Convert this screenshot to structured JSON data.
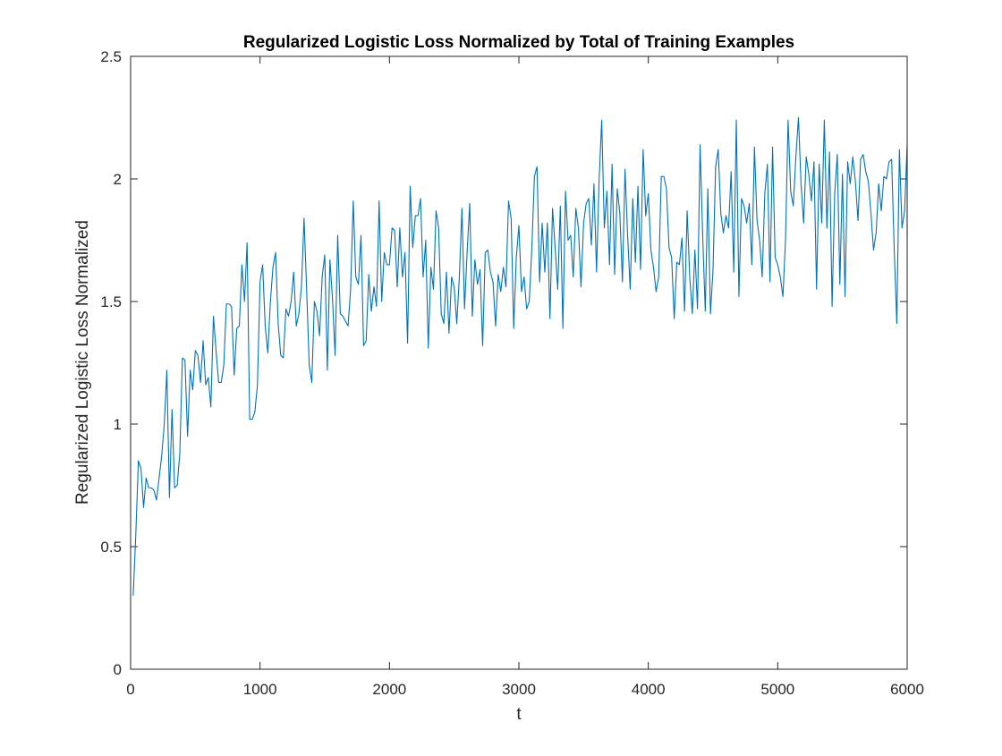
{
  "chart_data": {
    "type": "line",
    "title": "Regularized Logistic Loss Normalized by Total of Training Examples",
    "xlabel": "t",
    "ylabel": "Regularized Logistic Loss Normalized",
    "xlim": [
      0,
      6000
    ],
    "ylim": [
      0,
      2.5
    ],
    "xticks": [
      0,
      1000,
      2000,
      3000,
      4000,
      5000,
      6000
    ],
    "yticks": [
      0,
      0.5,
      1,
      1.5,
      2,
      2.5
    ],
    "xtick_labels": [
      "0",
      "1000",
      "2000",
      "3000",
      "4000",
      "5000",
      "6000"
    ],
    "ytick_labels": [
      "0",
      "0.5",
      "1",
      "1.5",
      "2",
      "2.5"
    ],
    "grid": false,
    "legend": "none",
    "series_color": "#0072BD",
    "x_start": 20,
    "x_step": 20,
    "y": [
      0.3,
      0.55,
      0.85,
      0.82,
      0.66,
      0.78,
      0.74,
      0.74,
      0.73,
      0.69,
      0.78,
      0.87,
      1.0,
      1.22,
      0.7,
      1.06,
      0.74,
      0.75,
      0.88,
      1.27,
      1.26,
      0.95,
      1.22,
      1.14,
      1.3,
      1.28,
      1.17,
      1.34,
      1.16,
      1.19,
      1.07,
      1.44,
      1.3,
      1.17,
      1.17,
      1.24,
      1.49,
      1.49,
      1.48,
      1.2,
      1.39,
      1.4,
      1.65,
      1.5,
      1.74,
      1.02,
      1.02,
      1.05,
      1.16,
      1.58,
      1.65,
      1.4,
      1.29,
      1.5,
      1.64,
      1.7,
      1.41,
      1.28,
      1.27,
      1.47,
      1.44,
      1.5,
      1.62,
      1.4,
      1.45,
      1.56,
      1.84,
      1.55,
      1.24,
      1.17,
      1.5,
      1.46,
      1.36,
      1.6,
      1.69,
      1.22,
      1.67,
      1.51,
      1.28,
      1.77,
      1.45,
      1.44,
      1.42,
      1.4,
      1.55,
      1.91,
      1.6,
      1.57,
      1.77,
      1.32,
      1.34,
      1.61,
      1.46,
      1.56,
      1.48,
      1.91,
      1.5,
      1.7,
      1.65,
      1.65,
      1.8,
      1.79,
      1.56,
      1.8,
      1.6,
      1.7,
      1.33,
      1.97,
      1.72,
      1.85,
      1.85,
      1.92,
      1.6,
      1.75,
      1.31,
      1.64,
      1.55,
      1.87,
      1.8,
      1.45,
      1.41,
      1.62,
      1.37,
      1.6,
      1.56,
      1.41,
      1.6,
      1.88,
      1.47,
      1.7,
      1.9,
      1.44,
      1.67,
      1.57,
      1.63,
      1.32,
      1.7,
      1.71,
      1.62,
      1.58,
      1.4,
      1.61,
      1.54,
      1.64,
      1.56,
      1.91,
      1.84,
      1.39,
      1.68,
      1.81,
      1.54,
      1.6,
      1.47,
      1.5,
      1.72,
      2.01,
      2.05,
      1.58,
      1.82,
      1.62,
      1.82,
      1.43,
      1.88,
      1.72,
      1.55,
      1.89,
      1.39,
      1.95,
      1.75,
      1.77,
      1.6,
      1.88,
      1.8,
      1.56,
      1.82,
      1.9,
      1.92,
      1.73,
      1.98,
      1.62,
      2.0,
      2.24,
      1.8,
      1.95,
      1.65,
      2.06,
      1.61,
      1.96,
      1.86,
      1.58,
      2.04,
      1.77,
      1.55,
      1.92,
      1.66,
      1.97,
      1.63,
      2.12,
      1.85,
      1.94,
      1.71,
      1.64,
      1.54,
      1.6,
      2.01,
      2.01,
      1.96,
      1.72,
      1.68,
      1.43,
      1.66,
      1.65,
      1.76,
      1.46,
      1.87,
      1.6,
      1.45,
      1.71,
      1.47,
      2.14,
      1.77,
      1.46,
      1.96,
      1.45,
      1.63,
      2.05,
      2.12,
      1.86,
      1.78,
      1.85,
      1.8,
      2.03,
      1.62,
      2.24,
      1.52,
      1.92,
      1.89,
      1.82,
      1.9,
      1.65,
      2.13,
      1.83,
      1.75,
      1.6,
      1.94,
      2.06,
      1.58,
      2.13,
      1.68,
      1.65,
      1.6,
      1.52,
      1.75,
      2.24,
      1.95,
      1.89,
      2.09,
      2.25,
      1.98,
      1.82,
      2.09,
      2.02,
      1.91,
      2.07,
      1.55,
      2.06,
      1.82,
      2.24,
      1.8,
      2.11,
      1.48,
      1.94,
      2.1,
      1.57,
      2.02,
      1.52,
      2.07,
      1.98,
      2.09,
      1.99,
      1.83,
      2.08,
      2.1,
      2.03,
      1.99,
      1.86,
      1.71,
      1.78,
      1.98,
      1.87,
      2.01,
      2.0,
      2.07,
      2.08,
      1.71,
      1.41,
      2.12,
      1.8,
      1.87,
      2.14,
      2.09,
      1.85,
      2.01,
      1.87,
      2.04,
      1.96,
      2.05,
      1.78,
      1.76,
      1.92,
      1.89,
      1.96,
      2.0
    ]
  }
}
